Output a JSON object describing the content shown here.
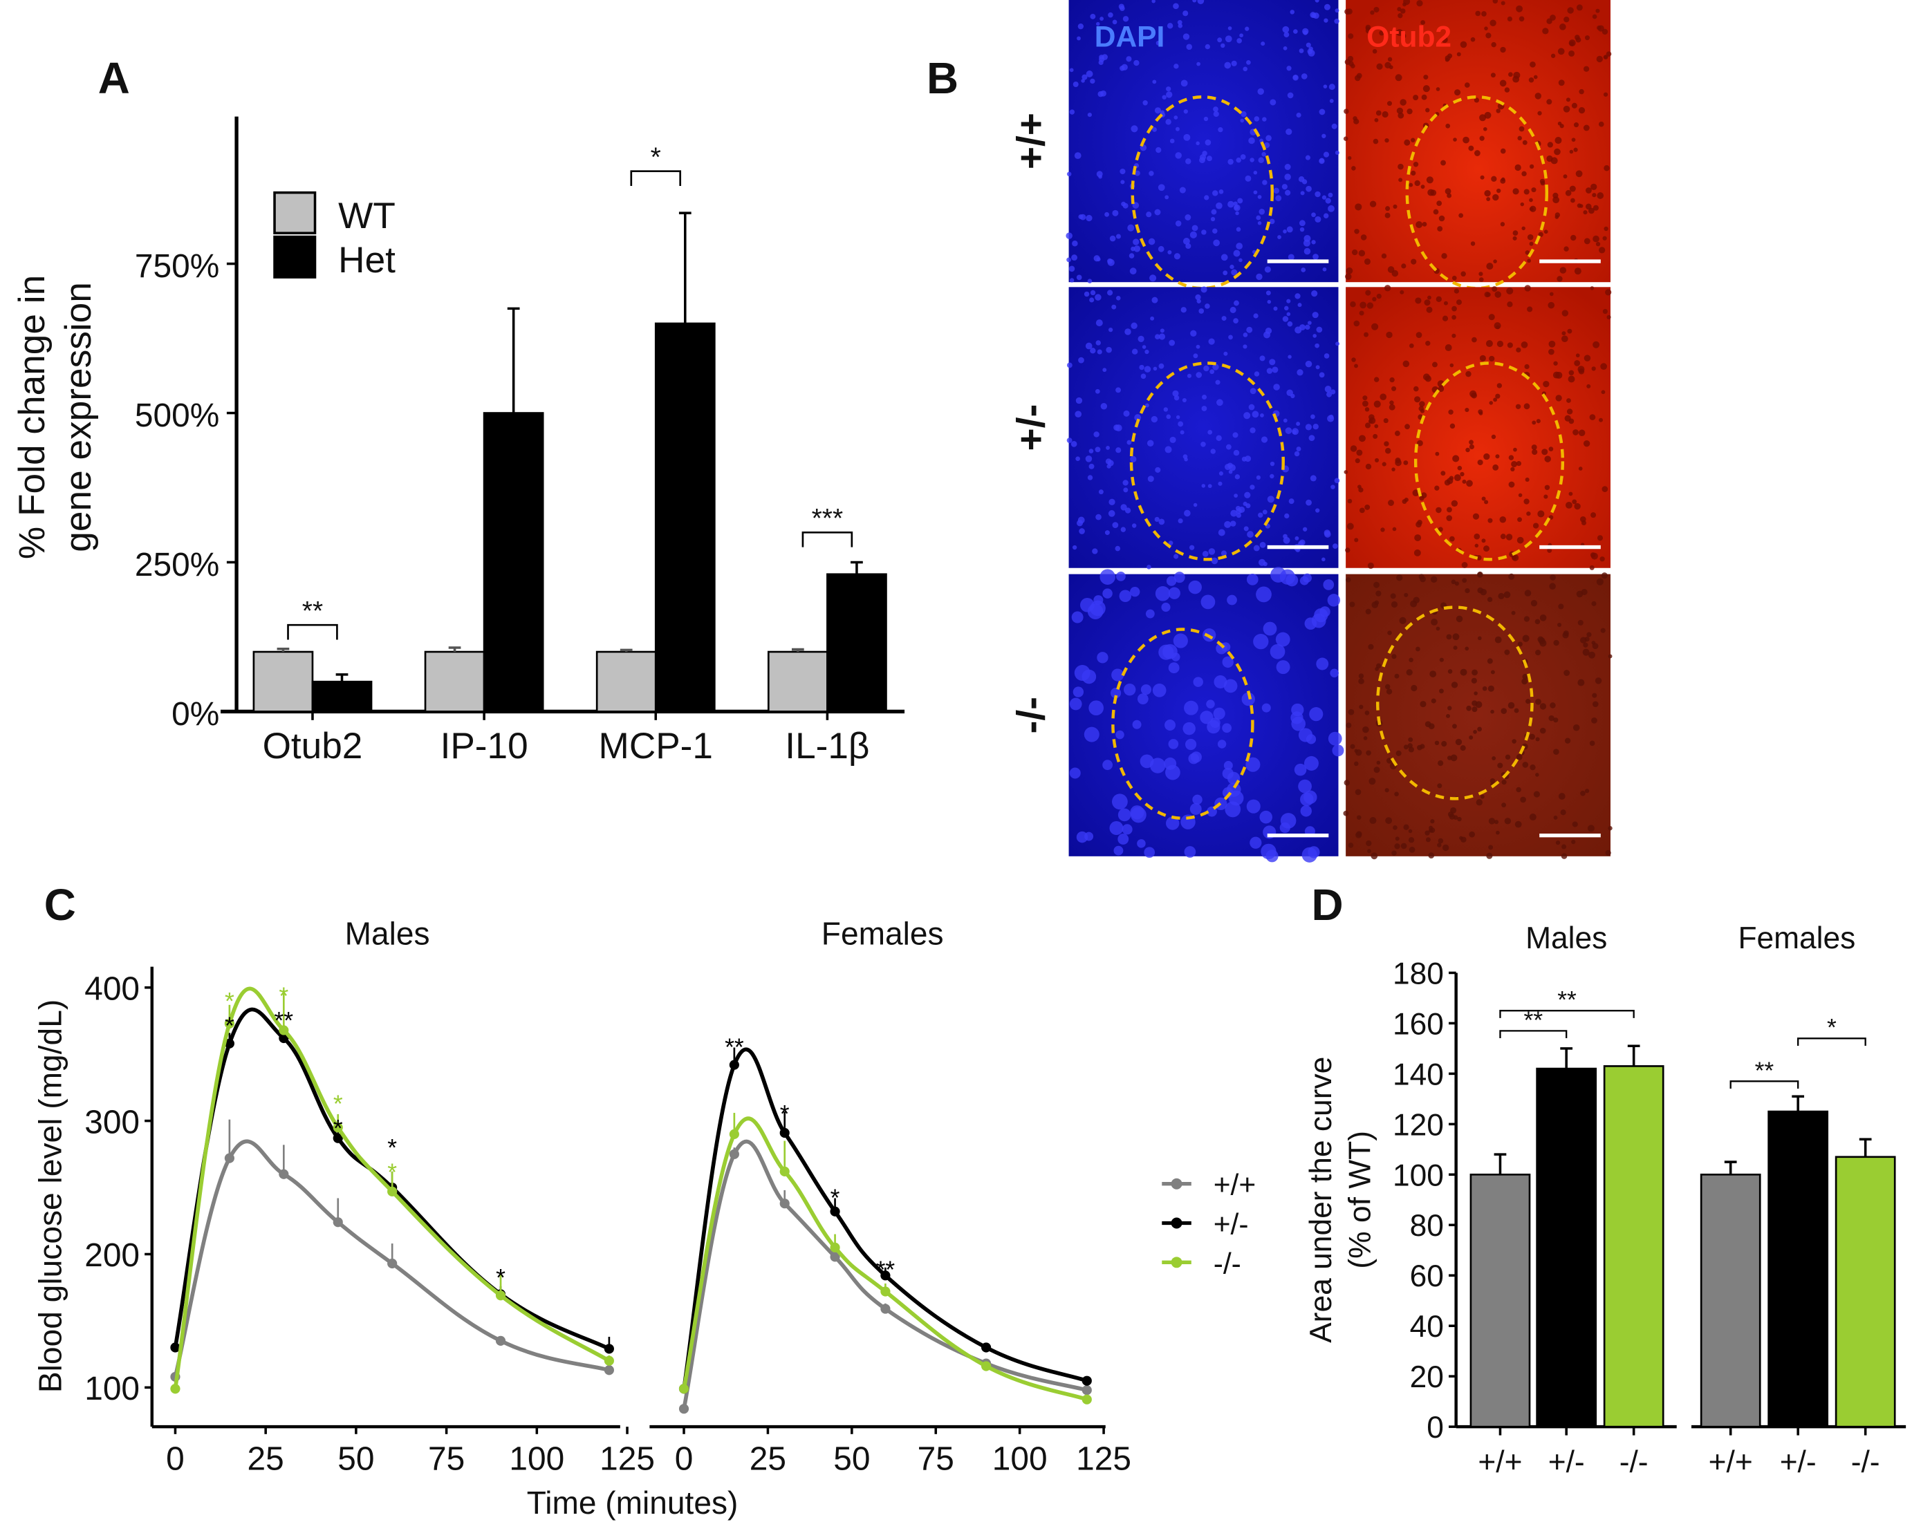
{
  "panel_letters": {
    "a": "A",
    "b": "B",
    "c": "C",
    "d": "D"
  },
  "colors": {
    "wt": "#808080",
    "het": "#000000",
    "ko": "#9acd32",
    "wt_light": "#c0c0c0",
    "dapi": "#1010c8",
    "otub2": "#d01800",
    "roi": "#f2b800"
  },
  "panel_b": {
    "columns": [
      "DAPI",
      "Otub2"
    ],
    "rows": [
      "+/+",
      "+/-",
      "-/-"
    ]
  },
  "chart_data": [
    {
      "panel": "A",
      "type": "bar",
      "categories": [
        "Otub2",
        "IP-10",
        "MCP-1",
        "IL-1β"
      ],
      "ylabel": "% Fold change in\ngene expression",
      "ylabel_lines": [
        "% Fold change in",
        "gene expression"
      ],
      "yticks": [
        "0%",
        "250%",
        "500%",
        "750%"
      ],
      "ytick_values": [
        0,
        250,
        500,
        750
      ],
      "ylim": [
        0,
        1000
      ],
      "legend": {
        "placement": "top-left",
        "entries": [
          "WT",
          "Het"
        ]
      },
      "series": [
        {
          "name": "WT",
          "color": "#c0c0c0",
          "values": [
            100,
            100,
            100,
            100
          ],
          "error_upper": [
            105,
            107,
            103,
            104
          ]
        },
        {
          "name": "Het",
          "color": "#000000",
          "values": [
            50,
            500,
            650,
            230
          ],
          "error_upper": [
            62,
            675,
            835,
            250
          ]
        }
      ],
      "significance": [
        {
          "category": "Otub2",
          "label": "**",
          "y": 145
        },
        {
          "category": "MCP-1",
          "label": "*",
          "y": 905
        },
        {
          "category": "IL-1β",
          "label": "***",
          "y": 300
        }
      ]
    },
    {
      "panel": "C",
      "type": "line",
      "xlabel": "Time (minutes)",
      "ylabel": "Blood glucose level (mg/dL)",
      "xticks": [
        "0",
        "25",
        "50",
        "75",
        "100",
        "125"
      ],
      "xtick_values": [
        0,
        25,
        50,
        75,
        100,
        125
      ],
      "yticks": [
        "100",
        "200",
        "300",
        "400"
      ],
      "ytick_values": [
        100,
        200,
        300,
        400
      ],
      "ylim": [
        70,
        420
      ],
      "xlim": [
        -6,
        128
      ],
      "x": [
        0,
        15,
        30,
        45,
        60,
        90,
        120
      ],
      "legend": {
        "placement": "right",
        "entries": [
          "+/+",
          "+/-",
          "-/-"
        ]
      },
      "facets": [
        {
          "title": "Males",
          "series": [
            {
              "name": "+/+",
              "color": "#808080",
              "values": [
                108,
                272,
                260,
                224,
                193,
                135,
                113
              ],
              "error_upper": [
                0,
                301,
                282,
                242,
                208,
                138,
                115
              ]
            },
            {
              "name": "+/-",
              "color": "#000000",
              "values": [
                130,
                358,
                362,
                287,
                250,
                170,
                129
              ],
              "error_upper": [
                0,
                366,
                372,
                296,
                262,
                176,
                138
              ]
            },
            {
              "name": "-/-",
              "color": "#9acd32",
              "values": [
                99,
                373,
                368,
                295,
                247,
                169,
                120
              ],
              "error_upper": [
                0,
                387,
                398,
                305,
                262,
                185,
                124
              ]
            }
          ],
          "annotations": [
            {
              "x": 15,
              "y": 392,
              "label": "*",
              "series": "-/-"
            },
            {
              "x": 15,
              "y": 378,
              "label": "*",
              "series": "+/-"
            },
            {
              "x": 30,
              "y": 396,
              "label": "*",
              "series": "-/-"
            },
            {
              "x": 30,
              "y": 382,
              "label": "**",
              "series": "+/-"
            },
            {
              "x": 45,
              "y": 312,
              "label": "*",
              "series": "-/-"
            },
            {
              "x": 45,
              "y": 301,
              "label": "*",
              "series": "+/-"
            },
            {
              "x": 60,
              "y": 268,
              "label": "*",
              "series": "-/-"
            },
            {
              "x": 60,
              "y": 268,
              "label": "*",
              "series": "+/-"
            },
            {
              "x": 90,
              "y": 189,
              "label": "*",
              "series": "+/-"
            }
          ]
        },
        {
          "title": "Females",
          "series": [
            {
              "name": "+/+",
              "color": "#808080",
              "values": [
                84,
                275,
                238,
                198,
                159,
                118,
                98
              ],
              "error_upper": [
                0,
                280,
                248,
                203,
                163,
                120,
                99
              ]
            },
            {
              "name": "+/-",
              "color": "#000000",
              "values": [
                99,
                342,
                291,
                232,
                184,
                130,
                105
              ],
              "error_upper": [
                0,
                355,
                307,
                242,
                190,
                132,
                107
              ]
            },
            {
              "name": "-/-",
              "color": "#9acd32",
              "values": [
                99,
                290,
                262,
                205,
                172,
                116,
                91
              ],
              "error_upper": [
                0,
                306,
                285,
                215,
                178,
                119,
                92
              ]
            }
          ],
          "annotations": [
            {
              "x": 15,
              "y": 362,
              "label": "**",
              "series": "+/-"
            },
            {
              "x": 30,
              "y": 312,
              "label": "*",
              "series": "+/-"
            },
            {
              "x": 45,
              "y": 249,
              "label": "*",
              "series": "+/-"
            },
            {
              "x": 60,
              "y": 195,
              "label": "**",
              "series": "+/-"
            }
          ]
        }
      ]
    },
    {
      "panel": "D",
      "type": "bar",
      "ylabel": "Area under the curve\n(% of WT)",
      "ylabel_lines": [
        "Area under the curve",
        "(% of WT)"
      ],
      "yticks": [
        "0",
        "20",
        "40",
        "60",
        "80",
        "100",
        "120",
        "140",
        "160",
        "180"
      ],
      "ytick_values": [
        0,
        20,
        40,
        60,
        80,
        100,
        120,
        140,
        160,
        180
      ],
      "ylim": [
        0,
        180
      ],
      "categories": [
        "+/+",
        "+/-",
        "-/-"
      ],
      "colors": [
        "#808080",
        "#000000",
        "#9acd32"
      ],
      "facets": [
        {
          "title": "Males",
          "values": [
            100,
            142,
            143
          ],
          "error_upper": [
            108,
            150,
            151
          ],
          "significance": [
            {
              "from": "+/+",
              "to": "+/-",
              "label": "**",
              "y": 157
            },
            {
              "from": "+/+",
              "to": "-/-",
              "label": "**",
              "y": 165
            }
          ]
        },
        {
          "title": "Females",
          "values": [
            100,
            125,
            107
          ],
          "error_upper": [
            105,
            131,
            114
          ],
          "significance": [
            {
              "from": "+/+",
              "to": "+/-",
              "label": "**",
              "y": 137
            },
            {
              "from": "+/-",
              "to": "-/-",
              "label": "*",
              "y": 154
            }
          ]
        }
      ]
    }
  ]
}
